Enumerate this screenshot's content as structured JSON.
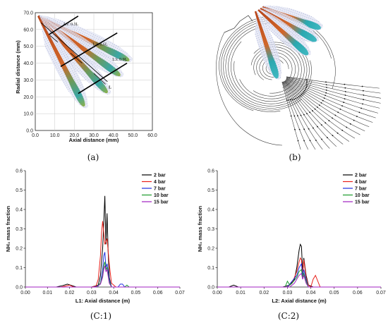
{
  "chart_data": [
    {
      "type": "scatter",
      "panel": "(a)",
      "xlabel": "Axial distance (mm)",
      "ylabel": "Radial distance (mm)",
      "xlim": [
        0,
        60
      ],
      "ylim": [
        0,
        70
      ],
      "xticks": [
        "0.0",
        "10.0",
        "20.0",
        "30.0",
        "40.0",
        "50.0",
        "60.0"
      ],
      "yticks": [
        "0.0",
        "10.0",
        "20.0",
        "30.0",
        "40.0",
        "50.0",
        "60.0",
        "70.0"
      ],
      "grid": true,
      "annotations": [
        "L1: 0.3L",
        "L2: 0.6L",
        "L3: 0.9L",
        "L"
      ],
      "colors": {
        "core": "#c85a1e",
        "mid": "#3aa0a0",
        "spray": "#8a93c8",
        "tip": "#7aa84a"
      }
    },
    {
      "type": "streamline",
      "panel": "(b)"
    },
    {
      "type": "line",
      "panel": "(C:1)",
      "xlabel": "L1: Axial distance (m)",
      "ylabel": "NH₃ mass fraction",
      "xlim": [
        0,
        0.07
      ],
      "ylim": [
        0,
        0.6
      ],
      "xticks": [
        "0.00",
        "0.01",
        "0.02",
        "0.03",
        "0.04",
        "0.05",
        "0.06",
        "0.07"
      ],
      "yticks": [
        "0.0",
        "0.1",
        "0.2",
        "0.3",
        "0.4",
        "0.5",
        "0.6"
      ],
      "legend": "top-right",
      "series": [
        {
          "name": "2 bar",
          "color": "#000000",
          "x": [
            0.0,
            0.014,
            0.017,
            0.019,
            0.021,
            0.023,
            0.03,
            0.033,
            0.034,
            0.035,
            0.0355,
            0.036,
            0.0365,
            0.037,
            0.0375,
            0.038,
            0.039,
            0.041,
            0.07
          ],
          "y": [
            0.0,
            0.0,
            0.008,
            0.015,
            0.008,
            0.0,
            0.0,
            0.01,
            0.06,
            0.2,
            0.33,
            0.47,
            0.22,
            0.38,
            0.18,
            0.05,
            0.0,
            0.0,
            0.0
          ]
        },
        {
          "name": "4 bar",
          "color": "#e8201a",
          "x": [
            0.0,
            0.016,
            0.018,
            0.02,
            0.022,
            0.03,
            0.032,
            0.033,
            0.034,
            0.0345,
            0.035,
            0.0355,
            0.036,
            0.037,
            0.038,
            0.039,
            0.041,
            0.047,
            0.049,
            0.07
          ],
          "y": [
            0.0,
            0.0,
            0.005,
            0.01,
            0.0,
            0.0,
            0.005,
            0.04,
            0.16,
            0.28,
            0.34,
            0.28,
            0.22,
            0.25,
            0.12,
            0.02,
            0.0,
            0.0,
            0.0,
            0.0
          ]
        },
        {
          "name": "7 bar",
          "color": "#2030e0",
          "x": [
            0.0,
            0.031,
            0.033,
            0.034,
            0.035,
            0.0355,
            0.036,
            0.0365,
            0.037,
            0.038,
            0.039,
            0.042,
            0.043,
            0.044,
            0.045,
            0.0455,
            0.07
          ],
          "y": [
            0.0,
            0.0,
            0.005,
            0.02,
            0.09,
            0.16,
            0.18,
            0.1,
            0.12,
            0.04,
            0.0,
            0.0,
            0.015,
            0.015,
            0.0,
            0.0,
            0.0
          ]
        },
        {
          "name": "10 bar",
          "color": "#1a9a2a",
          "x": [
            0.0,
            0.032,
            0.034,
            0.035,
            0.0355,
            0.036,
            0.0365,
            0.037,
            0.038,
            0.039,
            0.045,
            0.046,
            0.047,
            0.07
          ],
          "y": [
            0.0,
            0.0,
            0.02,
            0.06,
            0.11,
            0.13,
            0.09,
            0.1,
            0.03,
            0.0,
            0.0,
            0.01,
            0.0,
            0.0
          ]
        },
        {
          "name": "15 bar",
          "color": "#a020c0",
          "x": [
            0.0,
            0.032,
            0.034,
            0.035,
            0.0355,
            0.036,
            0.0365,
            0.037,
            0.038,
            0.039,
            0.07
          ],
          "y": [
            0.0,
            0.0,
            0.015,
            0.05,
            0.09,
            0.11,
            0.08,
            0.09,
            0.02,
            0.0,
            0.0
          ]
        }
      ]
    },
    {
      "type": "line",
      "panel": "(C:2)",
      "xlabel": "L2: Axial distance (m)",
      "ylabel": "NH₃ mass fraction",
      "xlim": [
        0,
        0.07
      ],
      "ylim": [
        0,
        0.6
      ],
      "xticks": [
        "0.00",
        "0.01",
        "0.02",
        "0.03",
        "0.04",
        "0.05",
        "0.06",
        "0.07"
      ],
      "yticks": [
        "0.0",
        "0.1",
        "0.2",
        "0.3",
        "0.4",
        "0.5",
        "0.6"
      ],
      "legend": "top-right",
      "series": [
        {
          "name": "2 bar",
          "color": "#000000",
          "x": [
            0.0,
            0.005,
            0.007,
            0.009,
            0.028,
            0.031,
            0.033,
            0.034,
            0.035,
            0.0355,
            0.036,
            0.0365,
            0.037,
            0.038,
            0.039,
            0.041,
            0.07
          ],
          "y": [
            0.0,
            0.0,
            0.01,
            0.0,
            0.0,
            0.01,
            0.04,
            0.1,
            0.19,
            0.22,
            0.21,
            0.08,
            0.15,
            0.06,
            0.01,
            0.0,
            0.0
          ]
        },
        {
          "name": "4 bar",
          "color": "#e8201a",
          "x": [
            0.0,
            0.03,
            0.032,
            0.034,
            0.035,
            0.0355,
            0.036,
            0.0365,
            0.037,
            0.038,
            0.039,
            0.04,
            0.041,
            0.042,
            0.043,
            0.044,
            0.07
          ],
          "y": [
            0.0,
            0.0,
            0.02,
            0.08,
            0.13,
            0.15,
            0.14,
            0.06,
            0.14,
            0.05,
            0.01,
            0.0,
            0.04,
            0.06,
            0.03,
            0.0,
            0.0
          ]
        },
        {
          "name": "7 bar",
          "color": "#2030e0",
          "x": [
            0.0,
            0.03,
            0.032,
            0.034,
            0.035,
            0.036,
            0.0365,
            0.037,
            0.038,
            0.039,
            0.07
          ],
          "y": [
            0.0,
            0.0,
            0.03,
            0.06,
            0.1,
            0.12,
            0.06,
            0.09,
            0.04,
            0.0,
            0.0
          ]
        },
        {
          "name": "10 bar",
          "color": "#1a9a2a",
          "x": [
            0.0,
            0.029,
            0.03,
            0.031,
            0.032,
            0.034,
            0.035,
            0.036,
            0.0365,
            0.037,
            0.038,
            0.039,
            0.07
          ],
          "y": [
            0.0,
            0.0,
            0.03,
            0.01,
            0.02,
            0.05,
            0.08,
            0.09,
            0.05,
            0.07,
            0.03,
            0.0,
            0.0
          ]
        },
        {
          "name": "15 bar",
          "color": "#a020c0",
          "x": [
            0.0,
            0.031,
            0.033,
            0.034,
            0.035,
            0.036,
            0.0365,
            0.037,
            0.038,
            0.039,
            0.07
          ],
          "y": [
            0.0,
            0.0,
            0.02,
            0.04,
            0.06,
            0.07,
            0.04,
            0.06,
            0.02,
            0.0,
            0.0
          ]
        }
      ]
    }
  ],
  "captions": {
    "a": "(a)",
    "b": "(b)",
    "c1": "(C:1)",
    "c2": "(C:2)"
  }
}
